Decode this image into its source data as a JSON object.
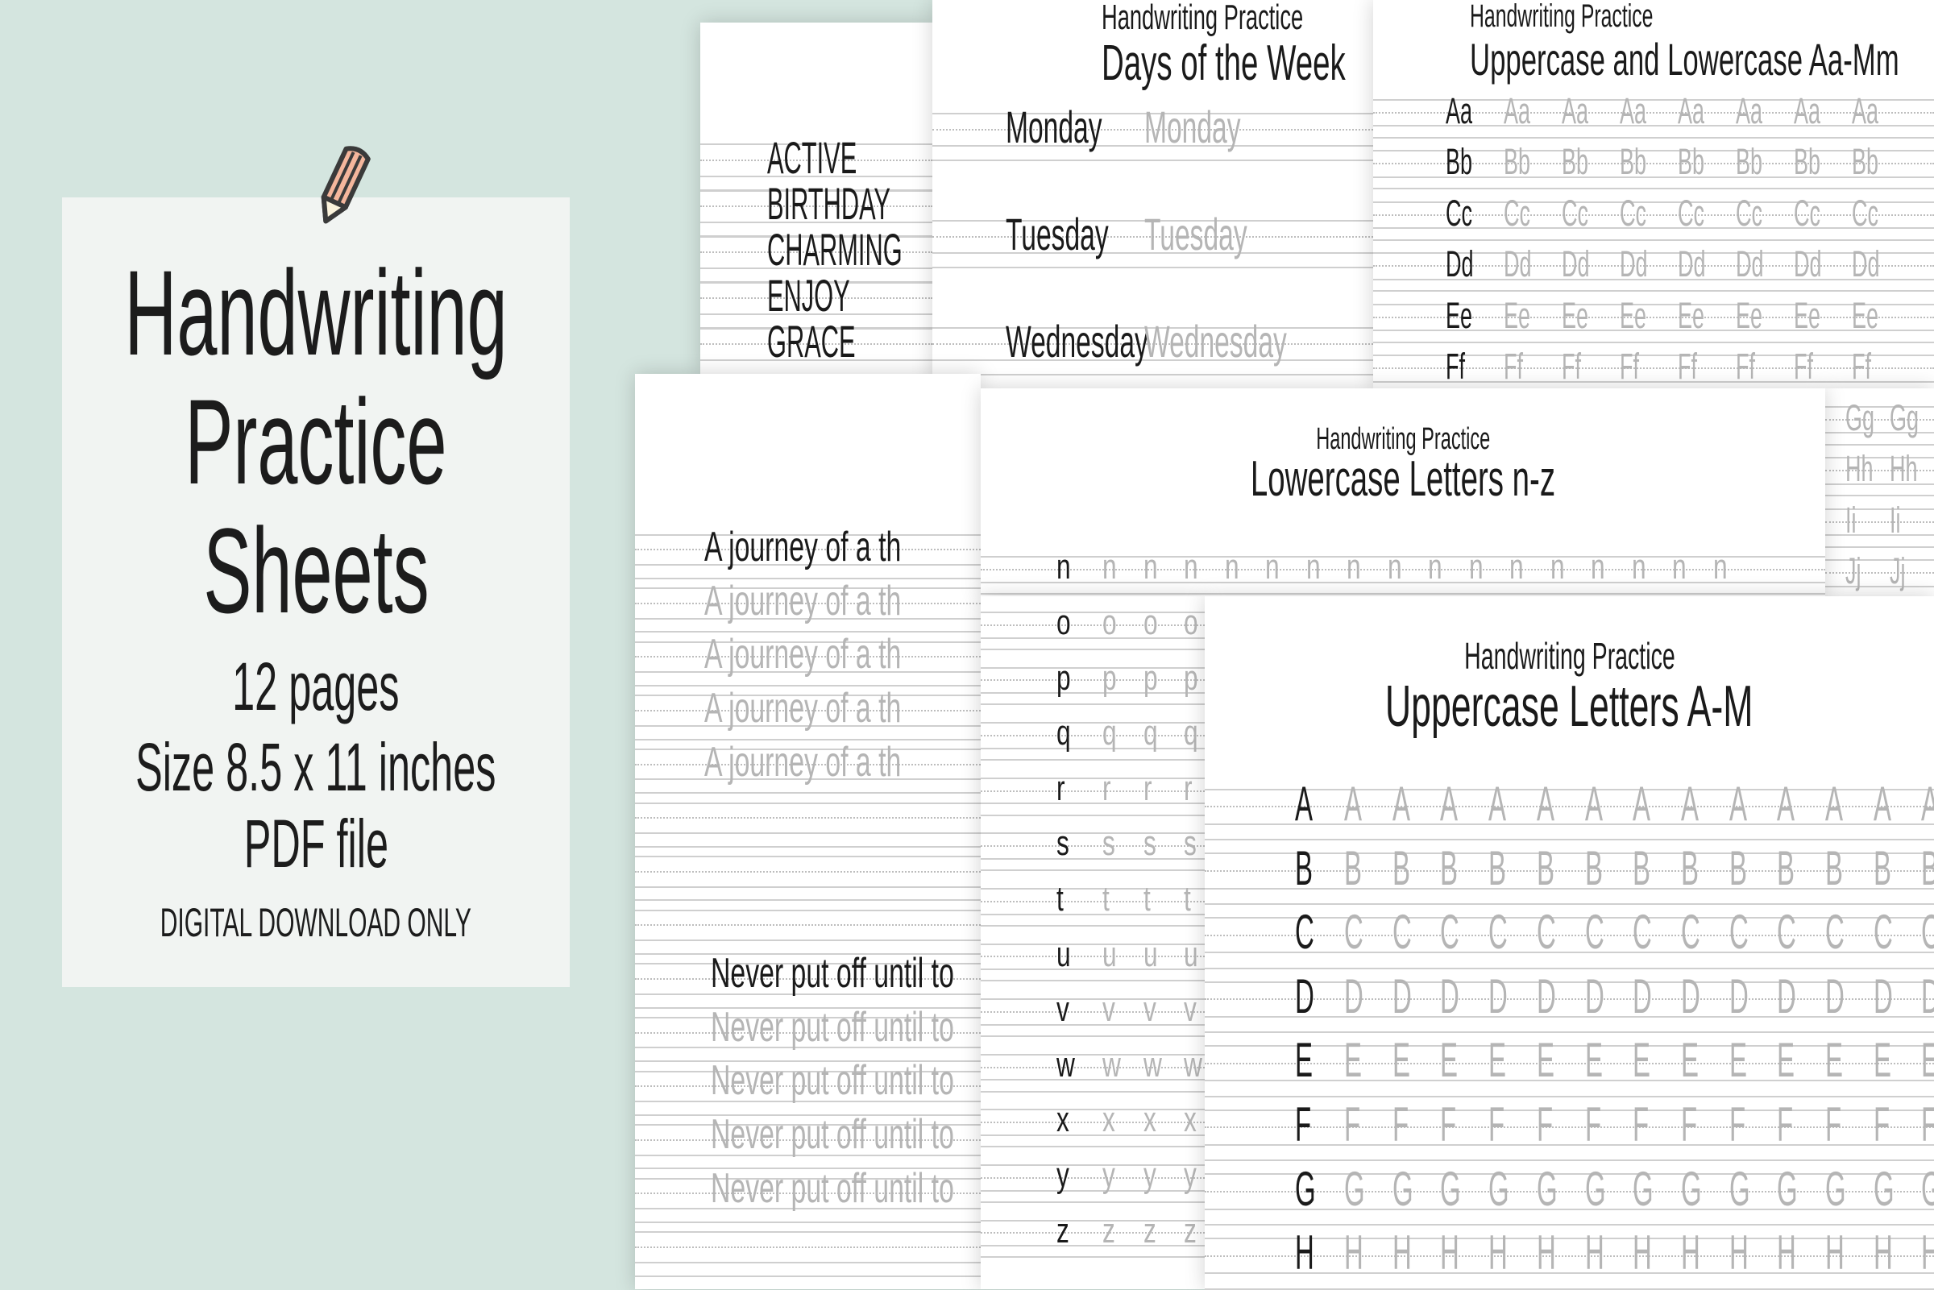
{
  "colors": {
    "background": "#d4e5df",
    "card": "#f1f4f2",
    "sheet": "#ffffff",
    "ink": "#1a1a1a",
    "trace": "#b5b5b5",
    "pencil_body": "#f4b69c",
    "pencil_tip": "#fbf3dc",
    "pencil_outline": "#3a3a3a"
  },
  "card": {
    "icon": "pencil-icon",
    "title_lines": [
      "Handwriting",
      "Practice",
      "Sheets"
    ],
    "pages": "12 pages",
    "size": "Size 8.5 x 11 inches",
    "format": "PDF file",
    "note": "DIGITAL DOWNLOAD ONLY"
  },
  "sheets": {
    "words": {
      "rows": [
        "ACTIVE",
        "BIRTHDAY",
        "CHARMING",
        "ENJOY",
        "GRACE"
      ]
    },
    "days": {
      "heading": "Handwriting Practice",
      "title": "Days of the Week",
      "rows": [
        "Monday",
        "Tuesday",
        "Wednesday"
      ]
    },
    "upper_lower": {
      "heading": "Handwriting Practice",
      "title": "Uppercase and Lowercase Aa-Mm",
      "rows": [
        "Aa",
        "Bb",
        "Cc",
        "Dd",
        "Ee",
        "Ff",
        "Gg",
        "Hh",
        "Ii",
        "Jj"
      ]
    },
    "sentences": {
      "groups": [
        "A journey of a th",
        "Never put off until to"
      ]
    },
    "lower_nz": {
      "heading": "Handwriting Practice",
      "title": "Lowercase Letters n-z",
      "rows": [
        "n",
        "o",
        "p",
        "q",
        "r",
        "s",
        "t",
        "u",
        "v",
        "w",
        "x",
        "y",
        "z"
      ]
    },
    "upper_am": {
      "heading": "Handwriting Practice",
      "title": "Uppercase Letters A-M",
      "rows": [
        "A",
        "B",
        "C",
        "D",
        "E",
        "F",
        "G",
        "H"
      ]
    }
  }
}
